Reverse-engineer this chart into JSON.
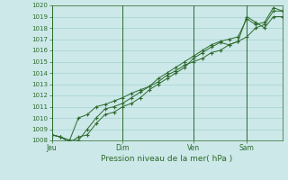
{
  "title": "",
  "xlabel": "Pression niveau de la mer( hPa )",
  "bg_color": "#cce8e8",
  "grid_color": "#99cccc",
  "line_color": "#2d6a2d",
  "ylim": [
    1008,
    1020
  ],
  "yticks": [
    1008,
    1009,
    1010,
    1011,
    1012,
    1013,
    1014,
    1015,
    1016,
    1017,
    1018,
    1019,
    1020
  ],
  "day_labels": [
    "Jeu",
    "Dim",
    "Ven",
    "Sam"
  ],
  "day_positions": [
    0,
    96,
    192,
    264
  ],
  "total_hours": 312,
  "series1": [
    [
      0,
      1008.5
    ],
    [
      12,
      1008.3
    ],
    [
      24,
      1008.0
    ],
    [
      36,
      1010.0
    ],
    [
      48,
      1010.3
    ],
    [
      60,
      1011.0
    ],
    [
      72,
      1011.2
    ],
    [
      84,
      1011.5
    ],
    [
      96,
      1011.8
    ],
    [
      108,
      1012.2
    ],
    [
      120,
      1012.5
    ],
    [
      132,
      1012.8
    ],
    [
      144,
      1013.2
    ],
    [
      156,
      1013.8
    ],
    [
      168,
      1014.2
    ],
    [
      180,
      1014.7
    ],
    [
      192,
      1015.0
    ],
    [
      204,
      1015.3
    ],
    [
      216,
      1015.8
    ],
    [
      228,
      1016.0
    ],
    [
      240,
      1016.5
    ],
    [
      252,
      1016.8
    ],
    [
      264,
      1017.2
    ],
    [
      276,
      1018.0
    ],
    [
      288,
      1018.3
    ],
    [
      300,
      1019.5
    ],
    [
      312,
      1019.5
    ]
  ],
  "series2": [
    [
      0,
      1008.5
    ],
    [
      12,
      1008.3
    ],
    [
      24,
      1007.8
    ],
    [
      36,
      1008.3
    ],
    [
      48,
      1008.5
    ],
    [
      60,
      1009.5
    ],
    [
      72,
      1010.3
    ],
    [
      84,
      1010.5
    ],
    [
      96,
      1011.0
    ],
    [
      108,
      1011.3
    ],
    [
      120,
      1011.8
    ],
    [
      132,
      1012.5
    ],
    [
      144,
      1013.0
    ],
    [
      156,
      1013.5
    ],
    [
      168,
      1014.0
    ],
    [
      180,
      1014.5
    ],
    [
      192,
      1015.3
    ],
    [
      204,
      1015.8
    ],
    [
      216,
      1016.3
    ],
    [
      228,
      1016.7
    ],
    [
      240,
      1016.5
    ],
    [
      252,
      1016.8
    ],
    [
      264,
      1019.0
    ],
    [
      276,
      1018.5
    ],
    [
      288,
      1018.0
    ],
    [
      300,
      1019.0
    ],
    [
      312,
      1019.0
    ]
  ],
  "series3": [
    [
      0,
      1008.5
    ],
    [
      12,
      1008.3
    ],
    [
      24,
      1008.0
    ],
    [
      36,
      1008.0
    ],
    [
      48,
      1009.0
    ],
    [
      60,
      1010.0
    ],
    [
      72,
      1010.8
    ],
    [
      84,
      1011.0
    ],
    [
      96,
      1011.3
    ],
    [
      108,
      1011.8
    ],
    [
      120,
      1012.3
    ],
    [
      132,
      1012.8
    ],
    [
      144,
      1013.5
    ],
    [
      156,
      1014.0
    ],
    [
      168,
      1014.5
    ],
    [
      180,
      1015.0
    ],
    [
      192,
      1015.5
    ],
    [
      204,
      1016.0
    ],
    [
      216,
      1016.5
    ],
    [
      228,
      1016.8
    ],
    [
      240,
      1017.0
    ],
    [
      252,
      1017.2
    ],
    [
      264,
      1018.8
    ],
    [
      276,
      1018.3
    ],
    [
      288,
      1018.5
    ],
    [
      300,
      1019.8
    ],
    [
      312,
      1019.5
    ]
  ]
}
